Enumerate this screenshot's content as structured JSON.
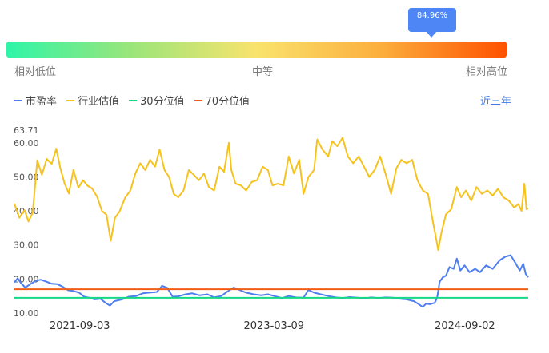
{
  "tooltip": {
    "value": "84.96%"
  },
  "gauge": {
    "marker_position": 0.8496,
    "labels": {
      "low": "相对低位",
      "mid": "中等",
      "high": "相对高位"
    }
  },
  "legend": {
    "items": [
      {
        "label": "市盈率",
        "color": "#4e7ef0"
      },
      {
        "label": "行业估值",
        "color": "#f6c21e"
      },
      {
        "label": "30分位值",
        "color": "#16d885"
      },
      {
        "label": "70分位值",
        "color": "#f25d16"
      }
    ]
  },
  "period_selector": {
    "label": "近三年"
  },
  "chart_data": {
    "type": "line",
    "ylim": [
      10,
      63.71
    ],
    "y_ticks": [
      "63.71",
      "60.00",
      "50.00",
      "40.00",
      "30.00",
      "20.00",
      "10.00"
    ],
    "x_ticks": [
      "2021-09-03",
      "2023-03-09",
      "2024-09-02"
    ],
    "x_range": [
      "2021-03-01",
      "2025-03-01"
    ],
    "series": [
      {
        "name": "行业估值",
        "color": "#f6c21e",
        "points": [
          [
            "2021-03-01",
            42.1
          ],
          [
            "2021-03-15",
            38.0
          ],
          [
            "2021-03-30",
            40.2
          ],
          [
            "2021-04-10",
            36.9
          ],
          [
            "2021-04-22",
            39.5
          ],
          [
            "2021-05-05",
            54.9
          ],
          [
            "2021-05-18",
            50.6
          ],
          [
            "2021-06-01",
            55.3
          ],
          [
            "2021-06-15",
            53.8
          ],
          [
            "2021-06-28",
            58.3
          ],
          [
            "2021-07-10",
            52.4
          ],
          [
            "2021-07-22",
            48.0
          ],
          [
            "2021-08-03",
            45.1
          ],
          [
            "2021-08-16",
            52.1
          ],
          [
            "2021-08-30",
            46.8
          ],
          [
            "2021-09-12",
            49.0
          ],
          [
            "2021-09-25",
            47.4
          ],
          [
            "2021-10-08",
            46.6
          ],
          [
            "2021-10-22",
            44.2
          ],
          [
            "2021-11-05",
            40.0
          ],
          [
            "2021-11-18",
            38.9
          ],
          [
            "2021-11-30",
            31.2
          ],
          [
            "2021-12-12",
            38.0
          ],
          [
            "2021-12-25",
            39.8
          ],
          [
            "2022-01-10",
            43.9
          ],
          [
            "2022-01-25",
            46.0
          ],
          [
            "2022-02-08",
            51.0
          ],
          [
            "2022-02-22",
            54.0
          ],
          [
            "2022-03-08",
            52.0
          ],
          [
            "2022-03-22",
            55.0
          ],
          [
            "2022-04-05",
            53.0
          ],
          [
            "2022-04-18",
            58.0
          ],
          [
            "2022-05-02",
            52.0
          ],
          [
            "2022-05-15",
            50.0
          ],
          [
            "2022-05-28",
            45.0
          ],
          [
            "2022-06-10",
            44.0
          ],
          [
            "2022-06-25",
            46.0
          ],
          [
            "2022-07-10",
            52.0
          ],
          [
            "2022-07-25",
            50.5
          ],
          [
            "2022-08-08",
            49.0
          ],
          [
            "2022-08-22",
            51.0
          ],
          [
            "2022-09-05",
            47.0
          ],
          [
            "2022-09-20",
            46.0
          ],
          [
            "2022-10-05",
            53.0
          ],
          [
            "2022-10-18",
            51.5
          ],
          [
            "2022-11-01",
            60.0
          ],
          [
            "2022-11-08",
            52.0
          ],
          [
            "2022-11-20",
            48.0
          ],
          [
            "2022-12-05",
            47.5
          ],
          [
            "2022-12-20",
            46.0
          ],
          [
            "2023-01-05",
            48.5
          ],
          [
            "2023-01-20",
            49.0
          ],
          [
            "2023-02-05",
            53.0
          ],
          [
            "2023-02-20",
            52.0
          ],
          [
            "2023-03-05",
            47.5
          ],
          [
            "2023-03-20",
            48.0
          ],
          [
            "2023-04-05",
            47.5
          ],
          [
            "2023-04-20",
            56.0
          ],
          [
            "2023-05-05",
            51.0
          ],
          [
            "2023-05-20",
            55.0
          ],
          [
            "2023-06-01",
            45.0
          ],
          [
            "2023-06-15",
            50.0
          ],
          [
            "2023-07-01",
            52.0
          ],
          [
            "2023-07-10",
            61.0
          ],
          [
            "2023-07-25",
            58.0
          ],
          [
            "2023-08-10",
            56.0
          ],
          [
            "2023-08-22",
            60.5
          ],
          [
            "2023-09-05",
            59.0
          ],
          [
            "2023-09-20",
            61.5
          ],
          [
            "2023-10-05",
            56.0
          ],
          [
            "2023-10-20",
            54.0
          ],
          [
            "2023-11-05",
            56.0
          ],
          [
            "2023-11-20",
            53.0
          ],
          [
            "2023-12-05",
            50.0
          ],
          [
            "2023-12-20",
            52.0
          ],
          [
            "2024-01-05",
            56.0
          ],
          [
            "2024-01-20",
            51.0
          ],
          [
            "2024-02-05",
            45.0
          ],
          [
            "2024-02-20",
            52.5
          ],
          [
            "2024-03-05",
            55.0
          ],
          [
            "2024-03-20",
            54.0
          ],
          [
            "2024-04-05",
            55.0
          ],
          [
            "2024-04-20",
            49.0
          ],
          [
            "2024-05-05",
            46.0
          ],
          [
            "2024-05-20",
            45.0
          ],
          [
            "2024-06-01",
            38.0
          ],
          [
            "2024-06-10",
            33.0
          ],
          [
            "2024-06-18",
            28.5
          ],
          [
            "2024-06-28",
            34.0
          ],
          [
            "2024-07-10",
            39.0
          ],
          [
            "2024-07-25",
            40.5
          ],
          [
            "2024-08-10",
            47.0
          ],
          [
            "2024-08-22",
            44.0
          ],
          [
            "2024-09-05",
            46.0
          ],
          [
            "2024-09-20",
            43.0
          ],
          [
            "2024-10-05",
            47.0
          ],
          [
            "2024-10-20",
            45.0
          ],
          [
            "2024-11-05",
            46.0
          ],
          [
            "2024-11-20",
            44.5
          ],
          [
            "2024-12-05",
            46.5
          ],
          [
            "2024-12-20",
            44.0
          ],
          [
            "2025-01-05",
            43.0
          ],
          [
            "2025-01-20",
            41.0
          ],
          [
            "2025-02-01",
            42.0
          ],
          [
            "2025-02-10",
            40.0
          ],
          [
            "2025-02-18",
            48.0
          ],
          [
            "2025-02-24",
            40.5
          ],
          [
            "2025-03-01",
            40.8
          ]
        ]
      },
      {
        "name": "市盈率",
        "color": "#4e7ef0",
        "points": [
          [
            "2021-03-01",
            19.0
          ],
          [
            "2021-03-10",
            20.2
          ],
          [
            "2021-03-20",
            18.8
          ],
          [
            "2021-04-01",
            17.5
          ],
          [
            "2021-04-15",
            18.5
          ],
          [
            "2021-05-01",
            19.5
          ],
          [
            "2021-05-15",
            19.8
          ],
          [
            "2021-06-01",
            19.2
          ],
          [
            "2021-06-15",
            18.6
          ],
          [
            "2021-07-01",
            18.5
          ],
          [
            "2021-07-15",
            17.8
          ],
          [
            "2021-08-01",
            16.7
          ],
          [
            "2021-08-15",
            16.5
          ],
          [
            "2021-09-01",
            16.0
          ],
          [
            "2021-09-15",
            14.8
          ],
          [
            "2021-10-01",
            14.5
          ],
          [
            "2021-10-15",
            14.0
          ],
          [
            "2021-11-01",
            14.2
          ],
          [
            "2021-11-15",
            13.0
          ],
          [
            "2021-11-28",
            12.2
          ],
          [
            "2021-12-10",
            13.5
          ],
          [
            "2022-01-01",
            14.0
          ],
          [
            "2022-01-20",
            14.8
          ],
          [
            "2022-02-10",
            15.0
          ],
          [
            "2022-03-01",
            15.8
          ],
          [
            "2022-03-20",
            16.0
          ],
          [
            "2022-04-10",
            16.2
          ],
          [
            "2022-04-25",
            18.0
          ],
          [
            "2022-05-10",
            17.4
          ],
          [
            "2022-05-25",
            14.8
          ],
          [
            "2022-06-10",
            14.9
          ],
          [
            "2022-07-01",
            15.5
          ],
          [
            "2022-07-20",
            15.8
          ],
          [
            "2022-08-10",
            15.2
          ],
          [
            "2022-09-01",
            15.5
          ],
          [
            "2022-09-20",
            14.6
          ],
          [
            "2022-10-10",
            15.0
          ],
          [
            "2022-10-30",
            16.5
          ],
          [
            "2022-11-15",
            17.5
          ],
          [
            "2022-12-01",
            16.8
          ],
          [
            "2022-12-20",
            16.0
          ],
          [
            "2023-01-10",
            15.5
          ],
          [
            "2023-02-01",
            15.2
          ],
          [
            "2023-02-20",
            15.5
          ],
          [
            "2023-03-10",
            15.0
          ],
          [
            "2023-04-01",
            14.4
          ],
          [
            "2023-04-20",
            15.0
          ],
          [
            "2023-05-10",
            14.6
          ],
          [
            "2023-06-01",
            14.5
          ],
          [
            "2023-06-15",
            16.8
          ],
          [
            "2023-07-01",
            16.0
          ],
          [
            "2023-07-20",
            15.5
          ],
          [
            "2023-08-10",
            15.0
          ],
          [
            "2023-09-01",
            14.6
          ],
          [
            "2023-09-20",
            14.4
          ],
          [
            "2023-10-10",
            14.7
          ],
          [
            "2023-11-01",
            14.5
          ],
          [
            "2023-11-20",
            14.3
          ],
          [
            "2023-12-10",
            14.6
          ],
          [
            "2024-01-01",
            14.4
          ],
          [
            "2024-01-20",
            14.6
          ],
          [
            "2024-02-10",
            14.5
          ],
          [
            "2024-03-01",
            14.2
          ],
          [
            "2024-03-20",
            14.0
          ],
          [
            "2024-04-10",
            13.5
          ],
          [
            "2024-04-25",
            12.5
          ],
          [
            "2024-05-05",
            11.8
          ],
          [
            "2024-05-15",
            12.8
          ],
          [
            "2024-05-25",
            12.6
          ],
          [
            "2024-06-08",
            13.0
          ],
          [
            "2024-06-15",
            14.5
          ],
          [
            "2024-06-22",
            19.2
          ],
          [
            "2024-07-01",
            20.5
          ],
          [
            "2024-07-10",
            21.0
          ],
          [
            "2024-07-20",
            23.5
          ],
          [
            "2024-08-01",
            23.0
          ],
          [
            "2024-08-10",
            26.0
          ],
          [
            "2024-08-20",
            22.5
          ],
          [
            "2024-09-01",
            24.0
          ],
          [
            "2024-09-15",
            22.0
          ],
          [
            "2024-10-01",
            23.0
          ],
          [
            "2024-10-15",
            22.0
          ],
          [
            "2024-11-01",
            24.0
          ],
          [
            "2024-11-20",
            23.0
          ],
          [
            "2024-12-10",
            25.5
          ],
          [
            "2024-12-25",
            26.5
          ],
          [
            "2025-01-10",
            27.0
          ],
          [
            "2025-01-25",
            24.5
          ],
          [
            "2025-02-05",
            22.5
          ],
          [
            "2025-02-15",
            24.5
          ],
          [
            "2025-02-22",
            21.5
          ],
          [
            "2025-03-01",
            20.5
          ]
        ]
      },
      {
        "name": "30分位值",
        "color": "#16d885",
        "constant": 14.5
      },
      {
        "name": "70分位值",
        "color": "#f25d16",
        "constant": 17.0
      }
    ]
  }
}
